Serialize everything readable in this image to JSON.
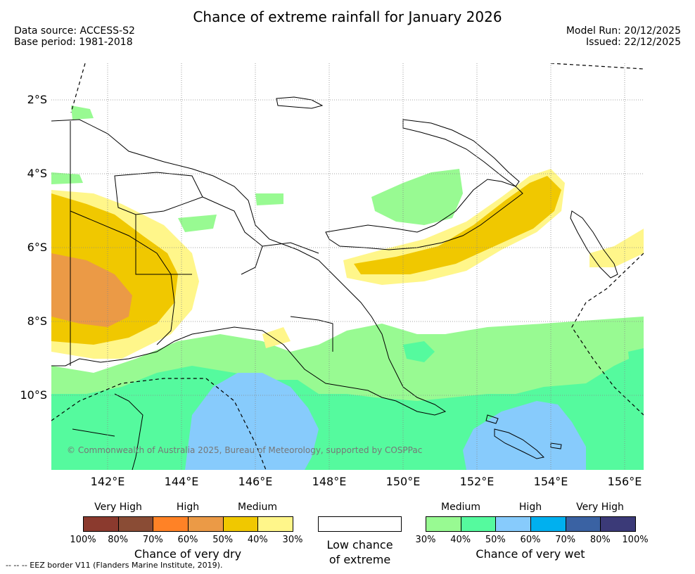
{
  "title": "Chance of extreme rainfall for January 2026",
  "header": {
    "data_source": "Data source: ACCESS-S2",
    "base_period": "Base period: 1981-2018",
    "model_run": "Model Run: 20/12/2025",
    "issued": "Issued: 22/12/2025"
  },
  "map": {
    "latitude_labels": [
      "2°S",
      "4°S",
      "6°S",
      "8°S",
      "10°S"
    ],
    "longitude_labels": [
      "142°E",
      "144°E",
      "146°E",
      "148°E",
      "150°E",
      "152°E",
      "154°E",
      "156°E"
    ],
    "copyright": "© Commonwealth of Australia 2025, Bureau of Meteorology, supported by COSPPac",
    "colors": {
      "dry_medium": "#f0c800",
      "dry_high": "#eb9a46",
      "dry_low": "#fff68a",
      "wet_medium": "#98fa92",
      "wet_medium_plus": "#55fa9e",
      "wet_high": "#87cbfc",
      "land_outline": "#000000",
      "grid": "#888888"
    }
  },
  "legend": {
    "dry": {
      "categories": [
        "Very High",
        "High",
        "Medium"
      ],
      "colors": [
        "#8b3a2e",
        "#8a4c35",
        "#ff8226",
        "#eb9a46",
        "#f0c800",
        "#fff68a"
      ],
      "ticks": [
        "100%",
        "80%",
        "70%",
        "60%",
        "50%",
        "40%",
        "30%"
      ],
      "caption": "Chance of very dry"
    },
    "neutral": {
      "caption_line1": "Low chance",
      "caption_line2": "of extreme",
      "color": "#ffffff"
    },
    "wet": {
      "categories": [
        "Medium",
        "High",
        "Very High"
      ],
      "colors": [
        "#98fa92",
        "#55fa9e",
        "#87cbfc",
        "#00b0ef",
        "#3a62a3",
        "#3b3a78"
      ],
      "ticks": [
        "30%",
        "40%",
        "50%",
        "60%",
        "70%",
        "80%",
        "100%"
      ],
      "caption": "Chance of very wet"
    }
  },
  "footnote": "--  --  -- EEZ border V11 (Flanders Marine Institute, 2019)."
}
